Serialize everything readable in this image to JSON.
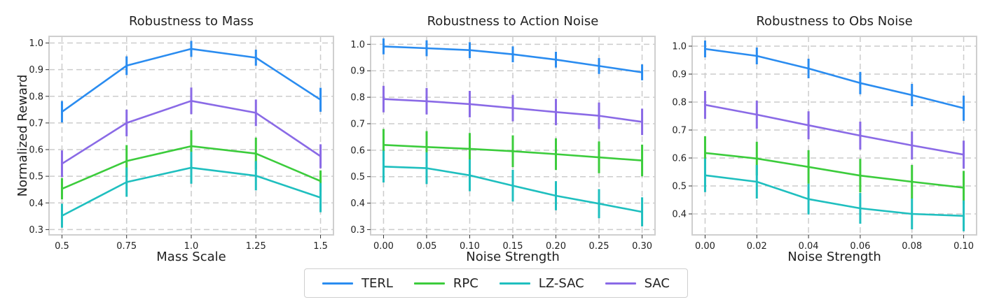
{
  "colors": {
    "TERL": "#2a8cf0",
    "RPC": "#3ccc3c",
    "LZ-SAC": "#1fbfbf",
    "SAC": "#8a6ae6",
    "grid": "#cccccc",
    "frame": "#cfcfcf"
  },
  "legend": {
    "items": [
      {
        "name": "TERL",
        "color": "#2a8cf0"
      },
      {
        "name": "RPC",
        "color": "#3ccc3c"
      },
      {
        "name": "LZ-SAC",
        "color": "#1fbfbf"
      },
      {
        "name": "SAC",
        "color": "#8a6ae6"
      }
    ]
  },
  "chart_data": [
    {
      "type": "line",
      "title": "Robustness to Mass",
      "xlabel": "Mass Scale",
      "ylabel": "Normalized Reward",
      "x": [
        0.5,
        0.75,
        1.0,
        1.25,
        1.5
      ],
      "x_tick_labels": [
        "0.5",
        "0.75",
        "1.0",
        "1.25",
        "1.5"
      ],
      "xlim": [
        0.45,
        1.55
      ],
      "ylim": [
        0.28,
        1.025
      ],
      "y_ticks": [
        0.3,
        0.4,
        0.5,
        0.6,
        0.7,
        0.8,
        0.9,
        1.0
      ],
      "y_tick_labels": [
        "0.3",
        "0.4",
        "0.5",
        "0.6",
        "0.7",
        "0.8",
        "0.9",
        "1.0"
      ],
      "grid": true,
      "series": [
        {
          "name": "TERL",
          "values": [
            0.742,
            0.915,
            0.978,
            0.945,
            0.787
          ],
          "errors": [
            0.04,
            0.035,
            0.03,
            0.03,
            0.045
          ]
        },
        {
          "name": "RPC",
          "values": [
            0.453,
            0.557,
            0.613,
            0.585,
            0.482
          ],
          "errors": [
            0.04,
            0.06,
            0.06,
            0.06,
            0.04
          ]
        },
        {
          "name": "LZ-SAC",
          "values": [
            0.352,
            0.478,
            0.532,
            0.502,
            0.42
          ],
          "errors": [
            0.045,
            0.055,
            0.06,
            0.055,
            0.055
          ]
        },
        {
          "name": "SAC",
          "values": [
            0.547,
            0.7,
            0.783,
            0.738,
            0.575
          ],
          "errors": [
            0.05,
            0.05,
            0.05,
            0.05,
            0.045
          ]
        }
      ]
    },
    {
      "type": "line",
      "title": "Robustness to Action Noise",
      "xlabel": "Noise Strength",
      "ylabel": "",
      "x": [
        0.0,
        0.05,
        0.1,
        0.15,
        0.2,
        0.25,
        0.3
      ],
      "x_tick_labels": [
        "0.00",
        "0.05",
        "0.10",
        "0.15",
        "0.20",
        "0.25",
        "0.30"
      ],
      "xlim": [
        -0.015,
        0.315
      ],
      "ylim": [
        0.28,
        1.03
      ],
      "y_ticks": [
        0.3,
        0.4,
        0.5,
        0.6,
        0.7,
        0.8,
        0.9,
        1.0
      ],
      "y_tick_labels": [
        "0.3",
        "0.4",
        "0.5",
        "0.6",
        "0.7",
        "0.8",
        "0.9",
        "1.0"
      ],
      "grid": true,
      "series": [
        {
          "name": "TERL",
          "values": [
            0.992,
            0.985,
            0.978,
            0.962,
            0.942,
            0.918,
            0.894
          ],
          "errors": [
            0.03,
            0.03,
            0.03,
            0.03,
            0.03,
            0.03,
            0.03
          ]
        },
        {
          "name": "RPC",
          "values": [
            0.62,
            0.612,
            0.605,
            0.596,
            0.585,
            0.573,
            0.561
          ],
          "errors": [
            0.06,
            0.06,
            0.06,
            0.06,
            0.06,
            0.06,
            0.06
          ]
        },
        {
          "name": "LZ-SAC",
          "values": [
            0.538,
            0.532,
            0.505,
            0.466,
            0.428,
            0.398,
            0.367
          ],
          "errors": [
            0.06,
            0.06,
            0.06,
            0.06,
            0.055,
            0.055,
            0.055
          ]
        },
        {
          "name": "SAC",
          "values": [
            0.793,
            0.785,
            0.774,
            0.759,
            0.744,
            0.73,
            0.707
          ],
          "errors": [
            0.05,
            0.05,
            0.05,
            0.05,
            0.05,
            0.05,
            0.05
          ]
        }
      ]
    },
    {
      "type": "line",
      "title": "Robustness to Obs Noise",
      "xlabel": "Noise Strength",
      "ylabel": "",
      "x": [
        0.0,
        0.02,
        0.04,
        0.06,
        0.08,
        0.1
      ],
      "x_tick_labels": [
        "0.00",
        "0.02",
        "0.04",
        "0.06",
        "0.08",
        "0.10"
      ],
      "xlim": [
        -0.005,
        0.105
      ],
      "ylim": [
        0.325,
        1.035
      ],
      "y_ticks": [
        0.4,
        0.5,
        0.6,
        0.7,
        0.8,
        0.9,
        1.0
      ],
      "y_tick_labels": [
        "0.4",
        "0.5",
        "0.6",
        "0.7",
        "0.8",
        "0.9",
        "1.0"
      ],
      "grid": true,
      "series": [
        {
          "name": "TERL",
          "values": [
            0.99,
            0.965,
            0.92,
            0.868,
            0.825,
            0.778
          ],
          "errors": [
            0.03,
            0.03,
            0.035,
            0.04,
            0.04,
            0.045
          ]
        },
        {
          "name": "RPC",
          "values": [
            0.618,
            0.598,
            0.568,
            0.537,
            0.515,
            0.494
          ],
          "errors": [
            0.06,
            0.06,
            0.06,
            0.06,
            0.06,
            0.06
          ]
        },
        {
          "name": "LZ-SAC",
          "values": [
            0.538,
            0.515,
            0.453,
            0.42,
            0.4,
            0.393
          ],
          "errors": [
            0.06,
            0.06,
            0.055,
            0.055,
            0.055,
            0.055
          ]
        },
        {
          "name": "SAC",
          "values": [
            0.79,
            0.755,
            0.717,
            0.68,
            0.645,
            0.612
          ],
          "errors": [
            0.05,
            0.05,
            0.05,
            0.05,
            0.05,
            0.05
          ]
        }
      ]
    }
  ]
}
